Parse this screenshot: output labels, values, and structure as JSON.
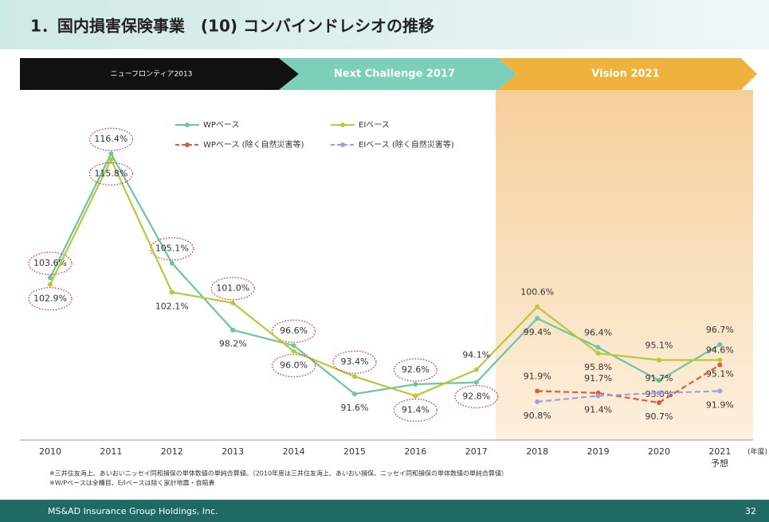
{
  "title": "1．国内損害保険事業　(10) コンバインドレシオの推移",
  "phases": [
    "ニューフロンティア2013",
    "Next Challenge 2017",
    "Vision 2021"
  ],
  "footnotes": [
    "※三井住友海上、あいおいニッセイ同和損保の単体数値の単純合算値。（2010年度は三井住友海上、あいおい損保、ニッセイ同和損保の単体数値の単純合算値）",
    "※W/Pベースは全種目、E/Iベースは除く家計地震・自賠責"
  ],
  "footer": {
    "company": "MS&AD Insurance Group Holdings, Inc.",
    "page": "32"
  },
  "chart_data": {
    "type": "line",
    "categories": [
      "2010",
      "2011",
      "2012",
      "2013",
      "2014",
      "2015",
      "2016",
      "2017",
      "2018",
      "2019",
      "2020",
      "2021"
    ],
    "category_note": "予想",
    "xlabel": "(年度)",
    "ylim": [
      87.5,
      122
    ],
    "series": [
      {
        "name": "WPベース",
        "color": "#6cc4a4",
        "dashed": false,
        "values": [
          103.6,
          116.4,
          105.1,
          98.2,
          96.6,
          91.6,
          92.6,
          92.8,
          99.4,
          96.4,
          93.0,
          96.7
        ],
        "value_labels": [
          "103.6%",
          "116.4%",
          "105.1%",
          "98.2%",
          "96.6%",
          "91.6%",
          "92.6%",
          "92.8%",
          "99.4%",
          "96.4%",
          "93.0%",
          "96.7%"
        ]
      },
      {
        "name": "EIベース",
        "color": "#b8c83c",
        "dashed": false,
        "values": [
          102.9,
          115.8,
          102.1,
          101.0,
          96.0,
          93.4,
          91.4,
          94.1,
          100.6,
          95.8,
          95.1,
          95.1
        ],
        "value_labels": [
          "102.9%",
          "115.8%",
          "102.1%",
          "101.0%",
          "96.0%",
          "93.4%",
          "91.4%",
          "94.1%",
          "100.6%",
          "95.8%",
          "95.1%",
          "95.1%"
        ]
      },
      {
        "name": "WPベース (除く自然災害等)",
        "color": "#e05a3a",
        "dashed": true,
        "values": [
          null,
          null,
          null,
          null,
          null,
          null,
          null,
          null,
          91.9,
          91.7,
          90.7,
          94.6
        ],
        "value_labels": [
          null,
          null,
          null,
          null,
          null,
          null,
          null,
          null,
          "91.9%",
          "91.7%",
          "90.7%",
          "94.6%"
        ]
      },
      {
        "name": "EIベース (除く自然災害等)",
        "color": "#9aa0e0",
        "dashed": true,
        "values": [
          null,
          null,
          null,
          null,
          null,
          null,
          null,
          null,
          90.8,
          91.4,
          91.7,
          91.9
        ],
        "value_labels": [
          null,
          null,
          null,
          null,
          null,
          null,
          null,
          null,
          "90.8%",
          "91.4%",
          "91.7%",
          "91.9%"
        ]
      }
    ]
  }
}
